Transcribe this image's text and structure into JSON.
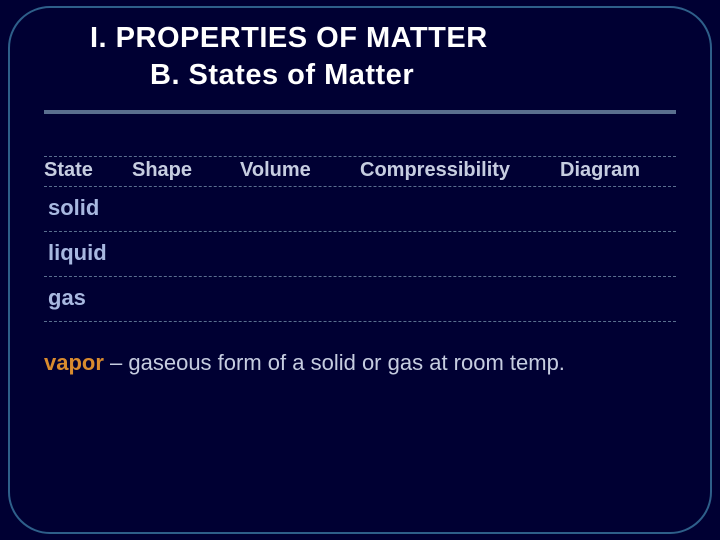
{
  "title": {
    "line1": "I.  PROPERTIES OF MATTER",
    "line2": "B.  States of Matter"
  },
  "table": {
    "columns": [
      "State",
      "Shape",
      "Volume",
      "Compressibility",
      "Diagram"
    ],
    "rows": [
      {
        "state": "solid"
      },
      {
        "state": "liquid"
      },
      {
        "state": "gas"
      }
    ]
  },
  "footnote": {
    "term": "vapor",
    "rest": " – gaseous form of a solid or gas at room temp."
  },
  "colors": {
    "background": "#000033",
    "frame_border": "#2e5f8a",
    "title_text": "#ffffff",
    "header_text": "#c6cde0",
    "state_text": "#a8b8e0",
    "term_text": "#d98b2e",
    "rule": "#5a6f8f"
  }
}
